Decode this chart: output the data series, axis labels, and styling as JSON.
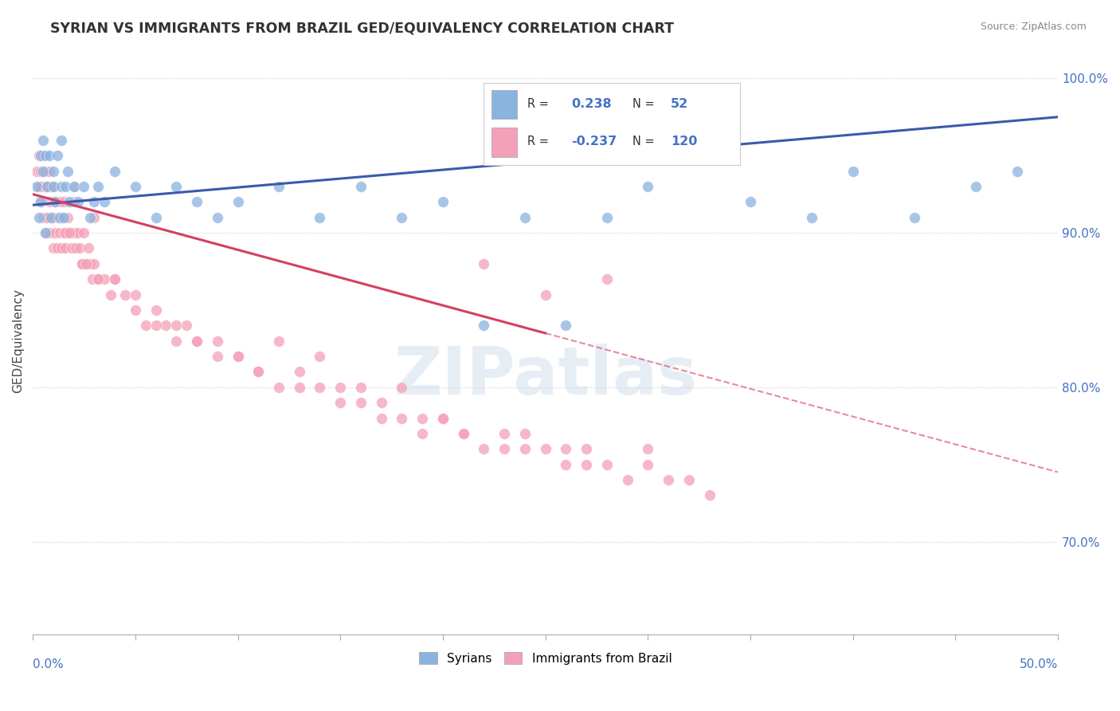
{
  "title": "SYRIAN VS IMMIGRANTS FROM BRAZIL GED/EQUIVALENCY CORRELATION CHART",
  "source": "Source: ZipAtlas.com",
  "ylabel": "GED/Equivalency",
  "xmin": 0.0,
  "xmax": 50.0,
  "ymin": 64.0,
  "ymax": 102.0,
  "yticks": [
    70.0,
    80.0,
    90.0,
    100.0
  ],
  "ytick_labels": [
    "70.0%",
    "80.0%",
    "90.0%",
    "100.0%"
  ],
  "color_syrian": "#8ab4e0",
  "color_brazil": "#f4a0b8",
  "color_trend_syrian": "#3a5aaa",
  "color_trend_brazil": "#d44060",
  "background_color": "#ffffff",
  "watermark": "ZIPatlas",
  "syrian_trend_x0": 0.0,
  "syrian_trend_y0": 91.8,
  "syrian_trend_x1": 50.0,
  "syrian_trend_y1": 97.5,
  "brazil_trend_x0": 0.0,
  "brazil_trend_y0": 92.5,
  "brazil_trend_x1_solid": 25.0,
  "brazil_trend_x1": 50.0,
  "brazil_trend_y1": 74.5,
  "brazil_dashed_color": "#d44060",
  "syrians_x": [
    0.2,
    0.3,
    0.4,
    0.4,
    0.5,
    0.5,
    0.6,
    0.6,
    0.7,
    0.8,
    0.9,
    1.0,
    1.0,
    1.1,
    1.2,
    1.3,
    1.4,
    1.4,
    1.5,
    1.6,
    1.7,
    1.8,
    2.0,
    2.2,
    2.5,
    2.8,
    3.0,
    3.2,
    3.5,
    4.0,
    5.0,
    6.0,
    7.0,
    8.0,
    9.0,
    10.0,
    12.0,
    14.0,
    16.0,
    18.0,
    20.0,
    22.0,
    24.0,
    26.0,
    28.0,
    30.0,
    35.0,
    38.0,
    40.0,
    43.0,
    46.0,
    48.0
  ],
  "syrians_y": [
    93.0,
    91.0,
    95.0,
    92.0,
    94.0,
    96.0,
    90.0,
    95.0,
    93.0,
    95.0,
    91.0,
    93.0,
    94.0,
    92.0,
    95.0,
    91.0,
    93.0,
    96.0,
    91.0,
    93.0,
    94.0,
    92.0,
    93.0,
    92.0,
    93.0,
    91.0,
    92.0,
    93.0,
    92.0,
    94.0,
    93.0,
    91.0,
    93.0,
    92.0,
    91.0,
    92.0,
    93.0,
    91.0,
    93.0,
    91.0,
    92.0,
    84.0,
    91.0,
    84.0,
    91.0,
    93.0,
    92.0,
    91.0,
    94.0,
    91.0,
    93.0,
    94.0
  ],
  "brazil_x": [
    0.2,
    0.3,
    0.3,
    0.4,
    0.4,
    0.5,
    0.5,
    0.5,
    0.6,
    0.6,
    0.7,
    0.7,
    0.8,
    0.8,
    0.9,
    0.9,
    1.0,
    1.0,
    1.0,
    1.1,
    1.1,
    1.2,
    1.2,
    1.3,
    1.3,
    1.4,
    1.4,
    1.5,
    1.5,
    1.6,
    1.7,
    1.8,
    1.9,
    2.0,
    2.0,
    2.1,
    2.2,
    2.3,
    2.4,
    2.5,
    2.6,
    2.7,
    2.8,
    2.9,
    3.0,
    3.2,
    3.5,
    3.8,
    4.0,
    4.5,
    5.0,
    5.5,
    6.0,
    6.5,
    7.0,
    7.5,
    8.0,
    9.0,
    10.0,
    11.0,
    12.0,
    13.0,
    14.0,
    15.0,
    16.0,
    17.0,
    18.0,
    19.0,
    20.0,
    21.0,
    22.0,
    23.0,
    24.0,
    25.0,
    26.0,
    27.0,
    28.0,
    29.0,
    30.0,
    31.0,
    32.0,
    33.0,
    22.0,
    25.0,
    28.0,
    12.0,
    8.0,
    3.0,
    18.0,
    5.0,
    14.0,
    20.0,
    16.0,
    24.0,
    7.0,
    2.0,
    10.0,
    4.0,
    6.0,
    26.0,
    11.0,
    0.5,
    13.0,
    9.0,
    17.0,
    15.0,
    23.0,
    19.0,
    21.0,
    30.0,
    27.0,
    0.8,
    1.6,
    2.4,
    0.6,
    1.8,
    3.2,
    0.4,
    2.6,
    0.7
  ],
  "brazil_y": [
    94.0,
    93.0,
    95.0,
    92.0,
    94.0,
    91.0,
    93.0,
    95.0,
    90.0,
    94.0,
    91.0,
    93.0,
    90.0,
    92.0,
    91.0,
    93.0,
    89.0,
    91.0,
    93.0,
    90.0,
    92.0,
    89.0,
    91.0,
    90.0,
    92.0,
    89.0,
    91.0,
    90.0,
    92.0,
    89.0,
    91.0,
    90.0,
    89.0,
    90.0,
    92.0,
    89.0,
    90.0,
    89.0,
    88.0,
    90.0,
    88.0,
    89.0,
    88.0,
    87.0,
    88.0,
    87.0,
    87.0,
    86.0,
    87.0,
    86.0,
    85.0,
    84.0,
    85.0,
    84.0,
    83.0,
    84.0,
    83.0,
    82.0,
    82.0,
    81.0,
    80.0,
    80.0,
    80.0,
    79.0,
    79.0,
    78.0,
    78.0,
    77.0,
    78.0,
    77.0,
    76.0,
    76.0,
    76.0,
    76.0,
    75.0,
    75.0,
    75.0,
    74.0,
    75.0,
    74.0,
    74.0,
    73.0,
    88.0,
    86.0,
    87.0,
    83.0,
    83.0,
    91.0,
    80.0,
    86.0,
    82.0,
    78.0,
    80.0,
    77.0,
    84.0,
    93.0,
    82.0,
    87.0,
    84.0,
    76.0,
    81.0,
    95.0,
    81.0,
    83.0,
    79.0,
    80.0,
    77.0,
    78.0,
    77.0,
    76.0,
    76.0,
    94.0,
    90.0,
    88.0,
    93.0,
    90.0,
    87.0,
    93.0,
    88.0,
    91.0
  ]
}
